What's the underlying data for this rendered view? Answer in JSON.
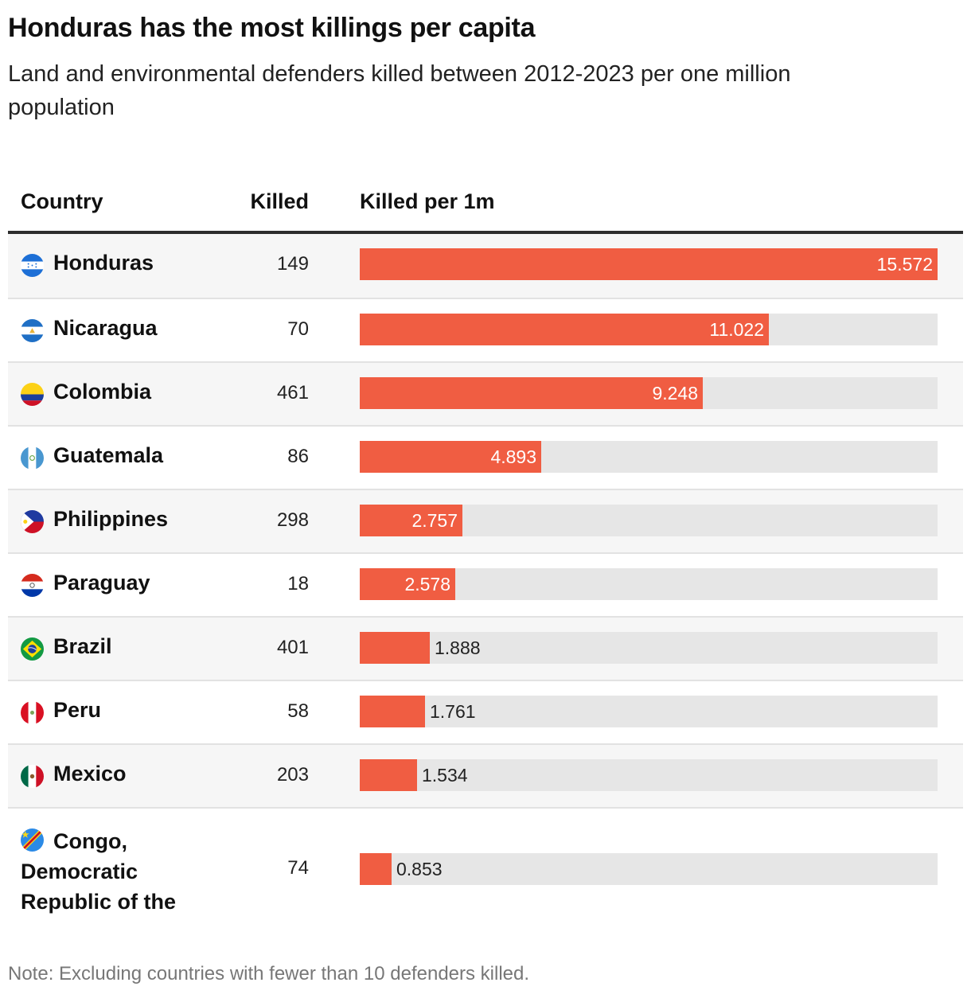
{
  "title": "Honduras has the most killings per capita",
  "subtitle": "Land and environmental defenders killed between 2012-2023 per one million population",
  "note": "Note: Excluding countries with fewer than 10 defenders killed.",
  "columns": {
    "country": "Country",
    "killed": "Killed",
    "per_million": "Killed per 1m"
  },
  "colors": {
    "bar": "#f05d42",
    "track": "#e6e6e6",
    "header_rule": "#2d2d2d",
    "alt_row": "#f6f6f6"
  },
  "chart_data": {
    "type": "table",
    "columns": [
      "Country",
      "Killed",
      "Killed per 1m"
    ],
    "bar_max": 15.572,
    "rows": [
      {
        "country": "Honduras",
        "flag": "honduras-flag-icon",
        "killed": "149",
        "per_million": 15.572,
        "label": "15.572"
      },
      {
        "country": "Nicaragua",
        "flag": "nicaragua-flag-icon",
        "killed": "70",
        "per_million": 11.022,
        "label": "11.022"
      },
      {
        "country": "Colombia",
        "flag": "colombia-flag-icon",
        "killed": "461",
        "per_million": 9.248,
        "label": "9.248"
      },
      {
        "country": "Guatemala",
        "flag": "guatemala-flag-icon",
        "killed": "86",
        "per_million": 4.893,
        "label": "4.893"
      },
      {
        "country": "Philippines",
        "flag": "philippines-flag-icon",
        "killed": "298",
        "per_million": 2.757,
        "label": "2.757"
      },
      {
        "country": "Paraguay",
        "flag": "paraguay-flag-icon",
        "killed": "18",
        "per_million": 2.578,
        "label": "2.578"
      },
      {
        "country": "Brazil",
        "flag": "brazil-flag-icon",
        "killed": "401",
        "per_million": 1.888,
        "label": "1.888"
      },
      {
        "country": "Peru",
        "flag": "peru-flag-icon",
        "killed": "58",
        "per_million": 1.761,
        "label": "1.761"
      },
      {
        "country": "Mexico",
        "flag": "mexico-flag-icon",
        "killed": "203",
        "per_million": 1.534,
        "label": "1.534"
      },
      {
        "country": "Congo, Democratic Republic of the",
        "flag": "dr-congo-flag-icon",
        "killed": "74",
        "per_million": 0.853,
        "label": "0.853"
      }
    ]
  }
}
